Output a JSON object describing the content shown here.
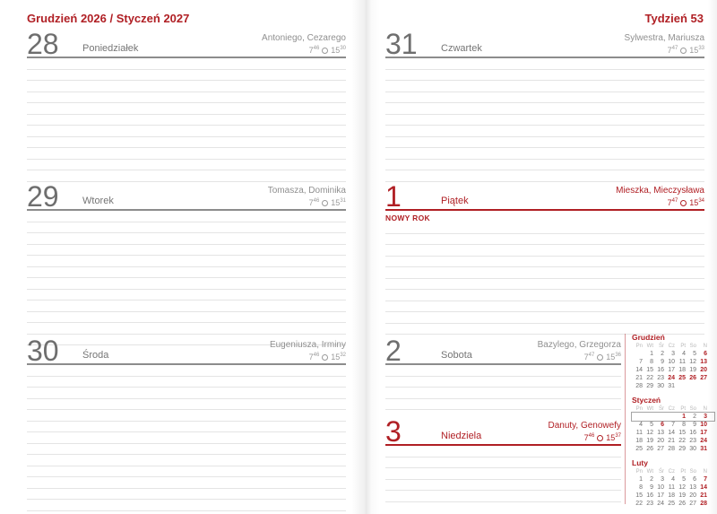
{
  "colors": {
    "accent": "#b01f24",
    "rule_line": "#e4e4e4",
    "header_rule": "#8c8c8c",
    "text_gray": "#757575"
  },
  "left_page": {
    "header": "Grudzień 2026 / Styczeń 2027",
    "days": [
      {
        "number": "28",
        "name": "Poniedziałek",
        "namedays": "Antoniego, Cezarego",
        "sun": {
          "rise_h": "7",
          "rise_m": "46",
          "set_h": "15",
          "set_m": "30"
        },
        "red": false,
        "holiday": "",
        "lines": 11
      },
      {
        "number": "29",
        "name": "Wtorek",
        "namedays": "Tomasza, Dominika",
        "sun": {
          "rise_h": "7",
          "rise_m": "46",
          "set_h": "15",
          "set_m": "31"
        },
        "red": false,
        "holiday": "",
        "lines": 12
      },
      {
        "number": "30",
        "name": "Środa",
        "namedays": "Eugeniusza, Irminy",
        "sun": {
          "rise_h": "7",
          "rise_m": "46",
          "set_h": "15",
          "set_m": "32"
        },
        "red": false,
        "holiday": "",
        "lines": 13
      }
    ]
  },
  "right_page": {
    "header": "Tydzień 53",
    "days": [
      {
        "number": "31",
        "name": "Czwartek",
        "namedays": "Sylwestra, Mariusza",
        "sun": {
          "rise_h": "7",
          "rise_m": "47",
          "set_h": "15",
          "set_m": "33"
        },
        "red": false,
        "holiday": "",
        "lines": 11
      },
      {
        "number": "1",
        "name": "Piątek",
        "namedays": "Mieszka, Mieczysława",
        "sun": {
          "rise_h": "7",
          "rise_m": "47",
          "set_h": "15",
          "set_m": "34"
        },
        "red": true,
        "holiday": "NOWY ROK",
        "lines": 10
      },
      {
        "number": "2",
        "name": "Sobota",
        "namedays": "Bazylego, Grzegorza",
        "sun": {
          "rise_h": "7",
          "rise_m": "47",
          "set_h": "15",
          "set_m": "36"
        },
        "red": false,
        "holiday": "",
        "lines": 4,
        "short": true
      },
      {
        "number": "3",
        "name": "Niedziela",
        "namedays": "Danuty, Genowefy",
        "sun": {
          "rise_h": "7",
          "rise_m": "46",
          "set_h": "15",
          "set_m": "37"
        },
        "red": true,
        "holiday": "",
        "lines": 5,
        "short": true
      }
    ]
  },
  "mini_calendars": [
    {
      "title": "Grudzień",
      "weekday_header": [
        "Pn",
        "Wt",
        "Śr",
        "Cz",
        "Pt",
        "So",
        "N"
      ],
      "weeks": [
        [
          "",
          "1",
          "2",
          "3",
          "4",
          "5",
          "6"
        ],
        [
          "7",
          "8",
          "9",
          "10",
          "11",
          "12",
          "13"
        ],
        [
          "14",
          "15",
          "16",
          "17",
          "18",
          "19",
          "20"
        ],
        [
          "21",
          "22",
          "23",
          "24",
          "25",
          "26",
          "27"
        ],
        [
          "28",
          "29",
          "30",
          "31",
          "",
          "",
          ""
        ]
      ],
      "red_days": [
        "6",
        "13",
        "20",
        "24",
        "25",
        "26",
        "27"
      ],
      "boxed_week": -1
    },
    {
      "title": "Styczeń",
      "weekday_header": [
        "Pn",
        "Wt",
        "Śr",
        "Cz",
        "Pt",
        "So",
        "N"
      ],
      "weeks": [
        [
          "",
          "",
          "",
          "",
          "1",
          "2",
          "3"
        ],
        [
          "4",
          "5",
          "6",
          "7",
          "8",
          "9",
          "10"
        ],
        [
          "11",
          "12",
          "13",
          "14",
          "15",
          "16",
          "17"
        ],
        [
          "18",
          "19",
          "20",
          "21",
          "22",
          "23",
          "24"
        ],
        [
          "25",
          "26",
          "27",
          "28",
          "29",
          "30",
          "31"
        ]
      ],
      "red_days": [
        "1",
        "3",
        "6",
        "10",
        "17",
        "24",
        "31"
      ],
      "boxed_week": 0
    },
    {
      "title": "Luty",
      "weekday_header": [
        "Pn",
        "Wt",
        "Śr",
        "Cz",
        "Pt",
        "So",
        "N"
      ],
      "weeks": [
        [
          "1",
          "2",
          "3",
          "4",
          "5",
          "6",
          "7"
        ],
        [
          "8",
          "9",
          "10",
          "11",
          "12",
          "13",
          "14"
        ],
        [
          "15",
          "16",
          "17",
          "18",
          "19",
          "20",
          "21"
        ],
        [
          "22",
          "23",
          "24",
          "25",
          "26",
          "27",
          "28"
        ]
      ],
      "red_days": [
        "7",
        "14",
        "21",
        "28"
      ],
      "boxed_week": -1
    }
  ]
}
